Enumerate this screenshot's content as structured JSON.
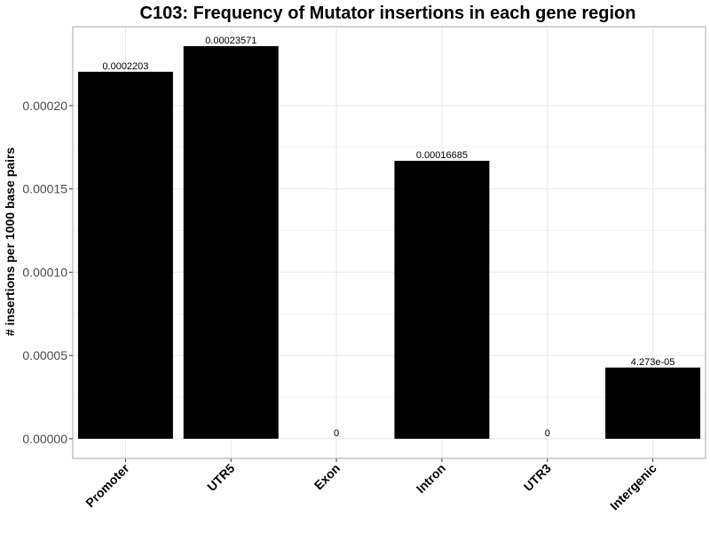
{
  "chart_data": {
    "type": "bar",
    "title": "C103: Frequency of Mutator insertions in each gene region",
    "xlabel": "",
    "ylabel": "# insertions per 1000 base pairs",
    "categories": [
      "Promoter",
      "UTR5",
      "Exon",
      "Intron",
      "UTR3",
      "Intergenic"
    ],
    "values": [
      0.0002203,
      0.00023571,
      0,
      0.00016685,
      0,
      4.273e-05
    ],
    "data_labels": [
      "0.0002203",
      "0.00023571",
      "0",
      "0.00016685",
      "0",
      "4.273e-05"
    ],
    "yticks": [
      "0.00000",
      "0.00005",
      "0.00010",
      "0.00015",
      "0.00020"
    ],
    "ytick_values": [
      0,
      5e-05,
      0.0001,
      0.00015,
      0.0002
    ],
    "ylim": [
      -1.18e-05,
      0.0002474
    ],
    "grid": true,
    "colors": {
      "bar": "#000000",
      "grid": "#ebebeb",
      "panel_border": "#a6a6a6"
    }
  }
}
